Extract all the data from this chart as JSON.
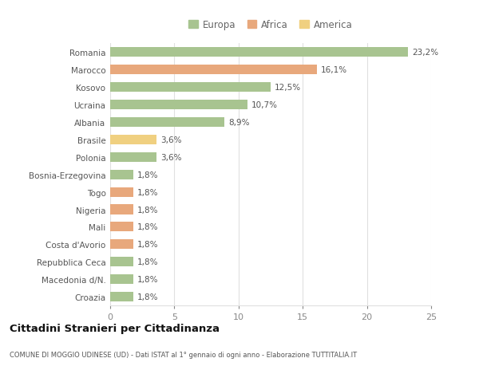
{
  "categories": [
    "Romania",
    "Marocco",
    "Kosovo",
    "Ucraina",
    "Albania",
    "Brasile",
    "Polonia",
    "Bosnia-Erzegovina",
    "Togo",
    "Nigeria",
    "Mali",
    "Costa d'Avorio",
    "Repubblica Ceca",
    "Macedonia d/N.",
    "Croazia"
  ],
  "values": [
    23.2,
    16.1,
    12.5,
    10.7,
    8.9,
    3.6,
    3.6,
    1.8,
    1.8,
    1.8,
    1.8,
    1.8,
    1.8,
    1.8,
    1.8
  ],
  "labels": [
    "23,2%",
    "16,1%",
    "12,5%",
    "10,7%",
    "8,9%",
    "3,6%",
    "3,6%",
    "1,8%",
    "1,8%",
    "1,8%",
    "1,8%",
    "1,8%",
    "1,8%",
    "1,8%",
    "1,8%"
  ],
  "continent": [
    "Europa",
    "Africa",
    "Europa",
    "Europa",
    "Europa",
    "America",
    "Europa",
    "Europa",
    "Africa",
    "Africa",
    "Africa",
    "Africa",
    "Europa",
    "Europa",
    "Europa"
  ],
  "colors": {
    "Europa": "#a8c490",
    "Africa": "#e8a87c",
    "America": "#f0d080"
  },
  "xlim": [
    0,
    25
  ],
  "xticks": [
    0,
    5,
    10,
    15,
    20,
    25
  ],
  "title": "Cittadini Stranieri per Cittadinanza",
  "subtitle": "COMUNE DI MOGGIO UDINESE (UD) - Dati ISTAT al 1° gennaio di ogni anno - Elaborazione TUTTITALIA.IT",
  "background_color": "#ffffff",
  "grid_color": "#e0e0e0",
  "bar_height": 0.55
}
